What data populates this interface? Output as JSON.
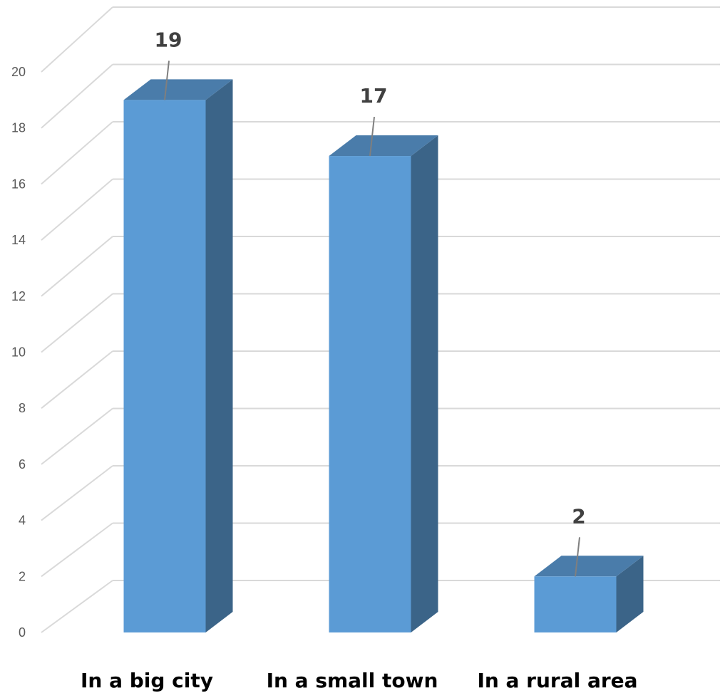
{
  "chart_data": {
    "type": "bar",
    "categories": [
      "In a big city",
      "In a small town",
      "In a rural area"
    ],
    "values": [
      19,
      17,
      2
    ],
    "data_labels": [
      "19",
      "17",
      "2"
    ],
    "ylim": [
      0,
      20
    ],
    "yticks": [
      0,
      2,
      4,
      6,
      8,
      10,
      12,
      14,
      16,
      18,
      20
    ],
    "ytick_labels": [
      "0",
      "2",
      "4",
      "6",
      "8",
      "10",
      "12",
      "14",
      "16",
      "18",
      "20"
    ],
    "grid": true,
    "three_d": true,
    "colors": {
      "bar_front": "#5B9BD5",
      "bar_top": "#4A7CAA",
      "bar_side": "#3B6488",
      "grid": "#D9D9D9",
      "tick_text": "#595959",
      "data_label_text": "#404040",
      "leader_line": "#7F7F7F"
    }
  }
}
